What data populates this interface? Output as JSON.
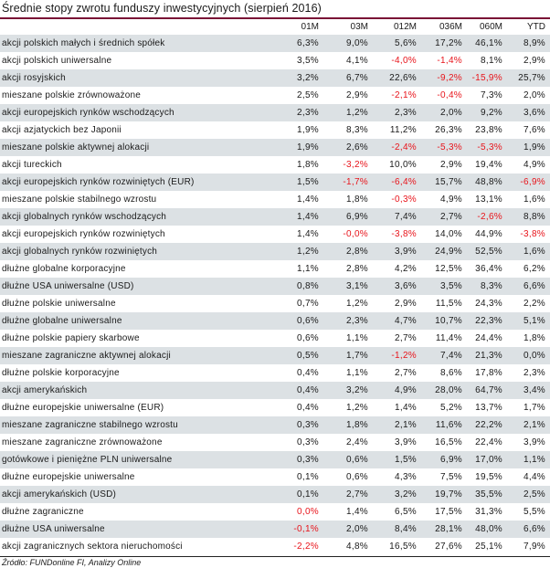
{
  "title": "Średnie stopy zwrotu funduszy inwestycyjnych (sierpień 2016)",
  "columns": [
    "01M",
    "03M",
    "012M",
    "036M",
    "060M",
    "YTD"
  ],
  "rows": [
    {
      "label": "akcji polskich małych i średnich spółek",
      "values": [
        "6,3%",
        "9,0%",
        "5,6%",
        "17,2%",
        "46,1%",
        "8,9%"
      ],
      "red": []
    },
    {
      "label": "akcji polskich uniwersalne",
      "values": [
        "3,5%",
        "4,1%",
        "-4,0%",
        "-1,4%",
        "8,1%",
        "2,9%"
      ],
      "red": [
        2,
        3
      ]
    },
    {
      "label": "akcji rosyjskich",
      "values": [
        "3,2%",
        "6,7%",
        "22,6%",
        "-9,2%",
        "-15,9%",
        "25,7%"
      ],
      "red": [
        3,
        4
      ]
    },
    {
      "label": "mieszane polskie zrównoważone",
      "values": [
        "2,5%",
        "2,9%",
        "-2,1%",
        "-0,4%",
        "7,3%",
        "2,0%"
      ],
      "red": [
        2,
        3
      ]
    },
    {
      "label": "akcji europejskich rynków wschodzących",
      "values": [
        "2,3%",
        "1,2%",
        "2,3%",
        "2,0%",
        "9,2%",
        "3,6%"
      ],
      "red": []
    },
    {
      "label": "akcji azjatyckich bez Japonii",
      "values": [
        "1,9%",
        "8,3%",
        "11,2%",
        "26,3%",
        "23,8%",
        "7,6%"
      ],
      "red": []
    },
    {
      "label": "mieszane polskie aktywnej alokacji",
      "values": [
        "1,9%",
        "2,6%",
        "-2,4%",
        "-5,3%",
        "-5,3%",
        "1,9%"
      ],
      "red": [
        2,
        3,
        4
      ]
    },
    {
      "label": "akcji tureckich",
      "values": [
        "1,8%",
        "-3,2%",
        "10,0%",
        "2,9%",
        "19,4%",
        "4,9%"
      ],
      "red": [
        1
      ]
    },
    {
      "label": "akcji europejskich rynków rozwiniętych (EUR)",
      "values": [
        "1,5%",
        "-1,7%",
        "-6,4%",
        "15,7%",
        "48,8%",
        "-6,9%"
      ],
      "red": [
        1,
        2,
        5
      ]
    },
    {
      "label": "mieszane polskie stabilnego wzrostu",
      "values": [
        "1,4%",
        "1,8%",
        "-0,3%",
        "4,9%",
        "13,1%",
        "1,6%"
      ],
      "red": [
        2
      ]
    },
    {
      "label": "akcji globalnych rynków wschodzących",
      "values": [
        "1,4%",
        "6,9%",
        "7,4%",
        "2,7%",
        "-2,6%",
        "8,8%"
      ],
      "red": [
        4
      ]
    },
    {
      "label": "akcji europejskich rynków rozwiniętych",
      "values": [
        "1,4%",
        "-0,0%",
        "-3,8%",
        "14,0%",
        "44,9%",
        "-3,8%"
      ],
      "red": [
        1,
        2,
        5
      ]
    },
    {
      "label": "akcji globalnych rynków rozwiniętych",
      "values": [
        "1,2%",
        "2,8%",
        "3,9%",
        "24,9%",
        "52,5%",
        "1,6%"
      ],
      "red": []
    },
    {
      "label": "dłużne globalne korporacyjne",
      "values": [
        "1,1%",
        "2,8%",
        "4,2%",
        "12,5%",
        "36,4%",
        "6,2%"
      ],
      "red": []
    },
    {
      "label": "dłużne USA uniwersalne (USD)",
      "values": [
        "0,8%",
        "3,1%",
        "3,6%",
        "3,5%",
        "8,3%",
        "6,6%"
      ],
      "red": []
    },
    {
      "label": "dłużne polskie uniwersalne",
      "values": [
        "0,7%",
        "1,2%",
        "2,9%",
        "11,5%",
        "24,3%",
        "2,2%"
      ],
      "red": []
    },
    {
      "label": "dłużne globalne uniwersalne",
      "values": [
        "0,6%",
        "2,3%",
        "4,7%",
        "10,7%",
        "22,3%",
        "5,1%"
      ],
      "red": []
    },
    {
      "label": "dłużne polskie papiery skarbowe",
      "values": [
        "0,6%",
        "1,1%",
        "2,7%",
        "11,4%",
        "24,4%",
        "1,8%"
      ],
      "red": []
    },
    {
      "label": "mieszane zagraniczne aktywnej alokacji",
      "values": [
        "0,5%",
        "1,7%",
        "-1,2%",
        "7,4%",
        "21,3%",
        "0,0%"
      ],
      "red": [
        2
      ]
    },
    {
      "label": "dłużne polskie korporacyjne",
      "values": [
        "0,4%",
        "1,1%",
        "2,7%",
        "8,6%",
        "17,8%",
        "2,3%"
      ],
      "red": []
    },
    {
      "label": "akcji amerykańskich",
      "values": [
        "0,4%",
        "3,2%",
        "4,9%",
        "28,0%",
        "64,7%",
        "3,4%"
      ],
      "red": []
    },
    {
      "label": "dłużne europejskie uniwersalne (EUR)",
      "values": [
        "0,4%",
        "1,2%",
        "1,4%",
        "5,2%",
        "13,7%",
        "1,7%"
      ],
      "red": []
    },
    {
      "label": "mieszane zagraniczne stabilnego wzrostu",
      "values": [
        "0,3%",
        "1,8%",
        "2,1%",
        "11,6%",
        "22,2%",
        "2,1%"
      ],
      "red": []
    },
    {
      "label": "mieszane zagraniczne zrównoważone",
      "values": [
        "0,3%",
        "2,4%",
        "3,9%",
        "16,5%",
        "22,4%",
        "3,9%"
      ],
      "red": []
    },
    {
      "label": "gotówkowe i pieniężne PLN uniwersalne",
      "values": [
        "0,3%",
        "0,6%",
        "1,5%",
        "6,9%",
        "17,0%",
        "1,1%"
      ],
      "red": []
    },
    {
      "label": "dłużne europejskie uniwersalne",
      "values": [
        "0,1%",
        "0,6%",
        "4,3%",
        "7,5%",
        "19,5%",
        "4,4%"
      ],
      "red": []
    },
    {
      "label": "akcji amerykańskich (USD)",
      "values": [
        "0,1%",
        "2,7%",
        "3,2%",
        "19,7%",
        "35,5%",
        "2,5%"
      ],
      "red": []
    },
    {
      "label": "dłużne zagraniczne",
      "values": [
        "0,0%",
        "1,4%",
        "6,5%",
        "17,5%",
        "31,3%",
        "5,5%"
      ],
      "red": [
        0
      ]
    },
    {
      "label": "dłużne USA uniwersalne",
      "values": [
        "-0,1%",
        "2,0%",
        "8,4%",
        "28,1%",
        "48,0%",
        "6,6%"
      ],
      "red": [
        0
      ]
    },
    {
      "label": "akcji zagranicznych sektora nieruchomości",
      "values": [
        "-2,2%",
        "4,8%",
        "16,5%",
        "27,6%",
        "25,1%",
        "7,9%"
      ],
      "red": [
        0
      ]
    }
  ],
  "source": "Źródło: FUNDonline FI, Analizy Online",
  "colors": {
    "accent": "#7a1236",
    "zebra": "#dce1e4",
    "negative": "#e8141b"
  }
}
